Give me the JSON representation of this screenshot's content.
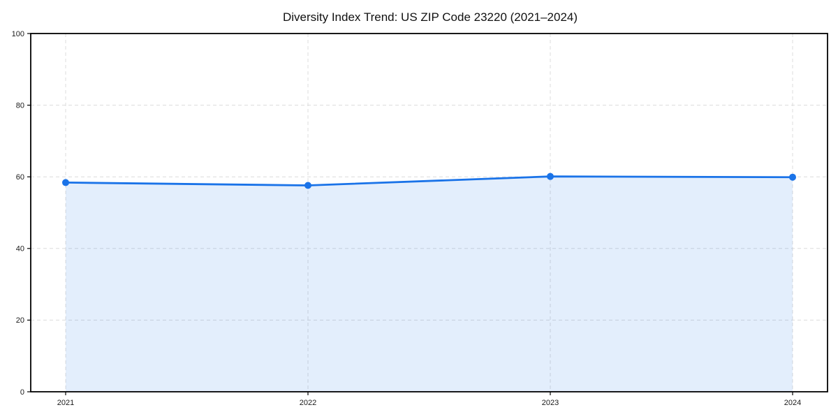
{
  "chart_data": {
    "type": "area",
    "title": "Diversity Index Trend: US ZIP Code 23220 (2021–2024)",
    "categories": [
      "2021",
      "2022",
      "2023",
      "2024"
    ],
    "series": [
      {
        "name": "Diversity Index",
        "values": [
          58.4,
          57.6,
          60.1,
          59.9
        ]
      }
    ],
    "xlabel": "",
    "ylabel": "",
    "ylim": [
      0,
      100
    ],
    "yticks": [
      0,
      20,
      40,
      60,
      80,
      100
    ],
    "grid": "dashed-both-axes",
    "legend_position": "none",
    "marker": "circle",
    "colors": {
      "line": "#1a73e8",
      "marker": "#1a73e8",
      "area_fill": "#1a73e8",
      "area_opacity": 0.12,
      "grid": "#dcdcdc",
      "axis": "#000000",
      "tick_text": "#1a1a1a",
      "title_text": "#111111",
      "background": "#ffffff"
    }
  }
}
